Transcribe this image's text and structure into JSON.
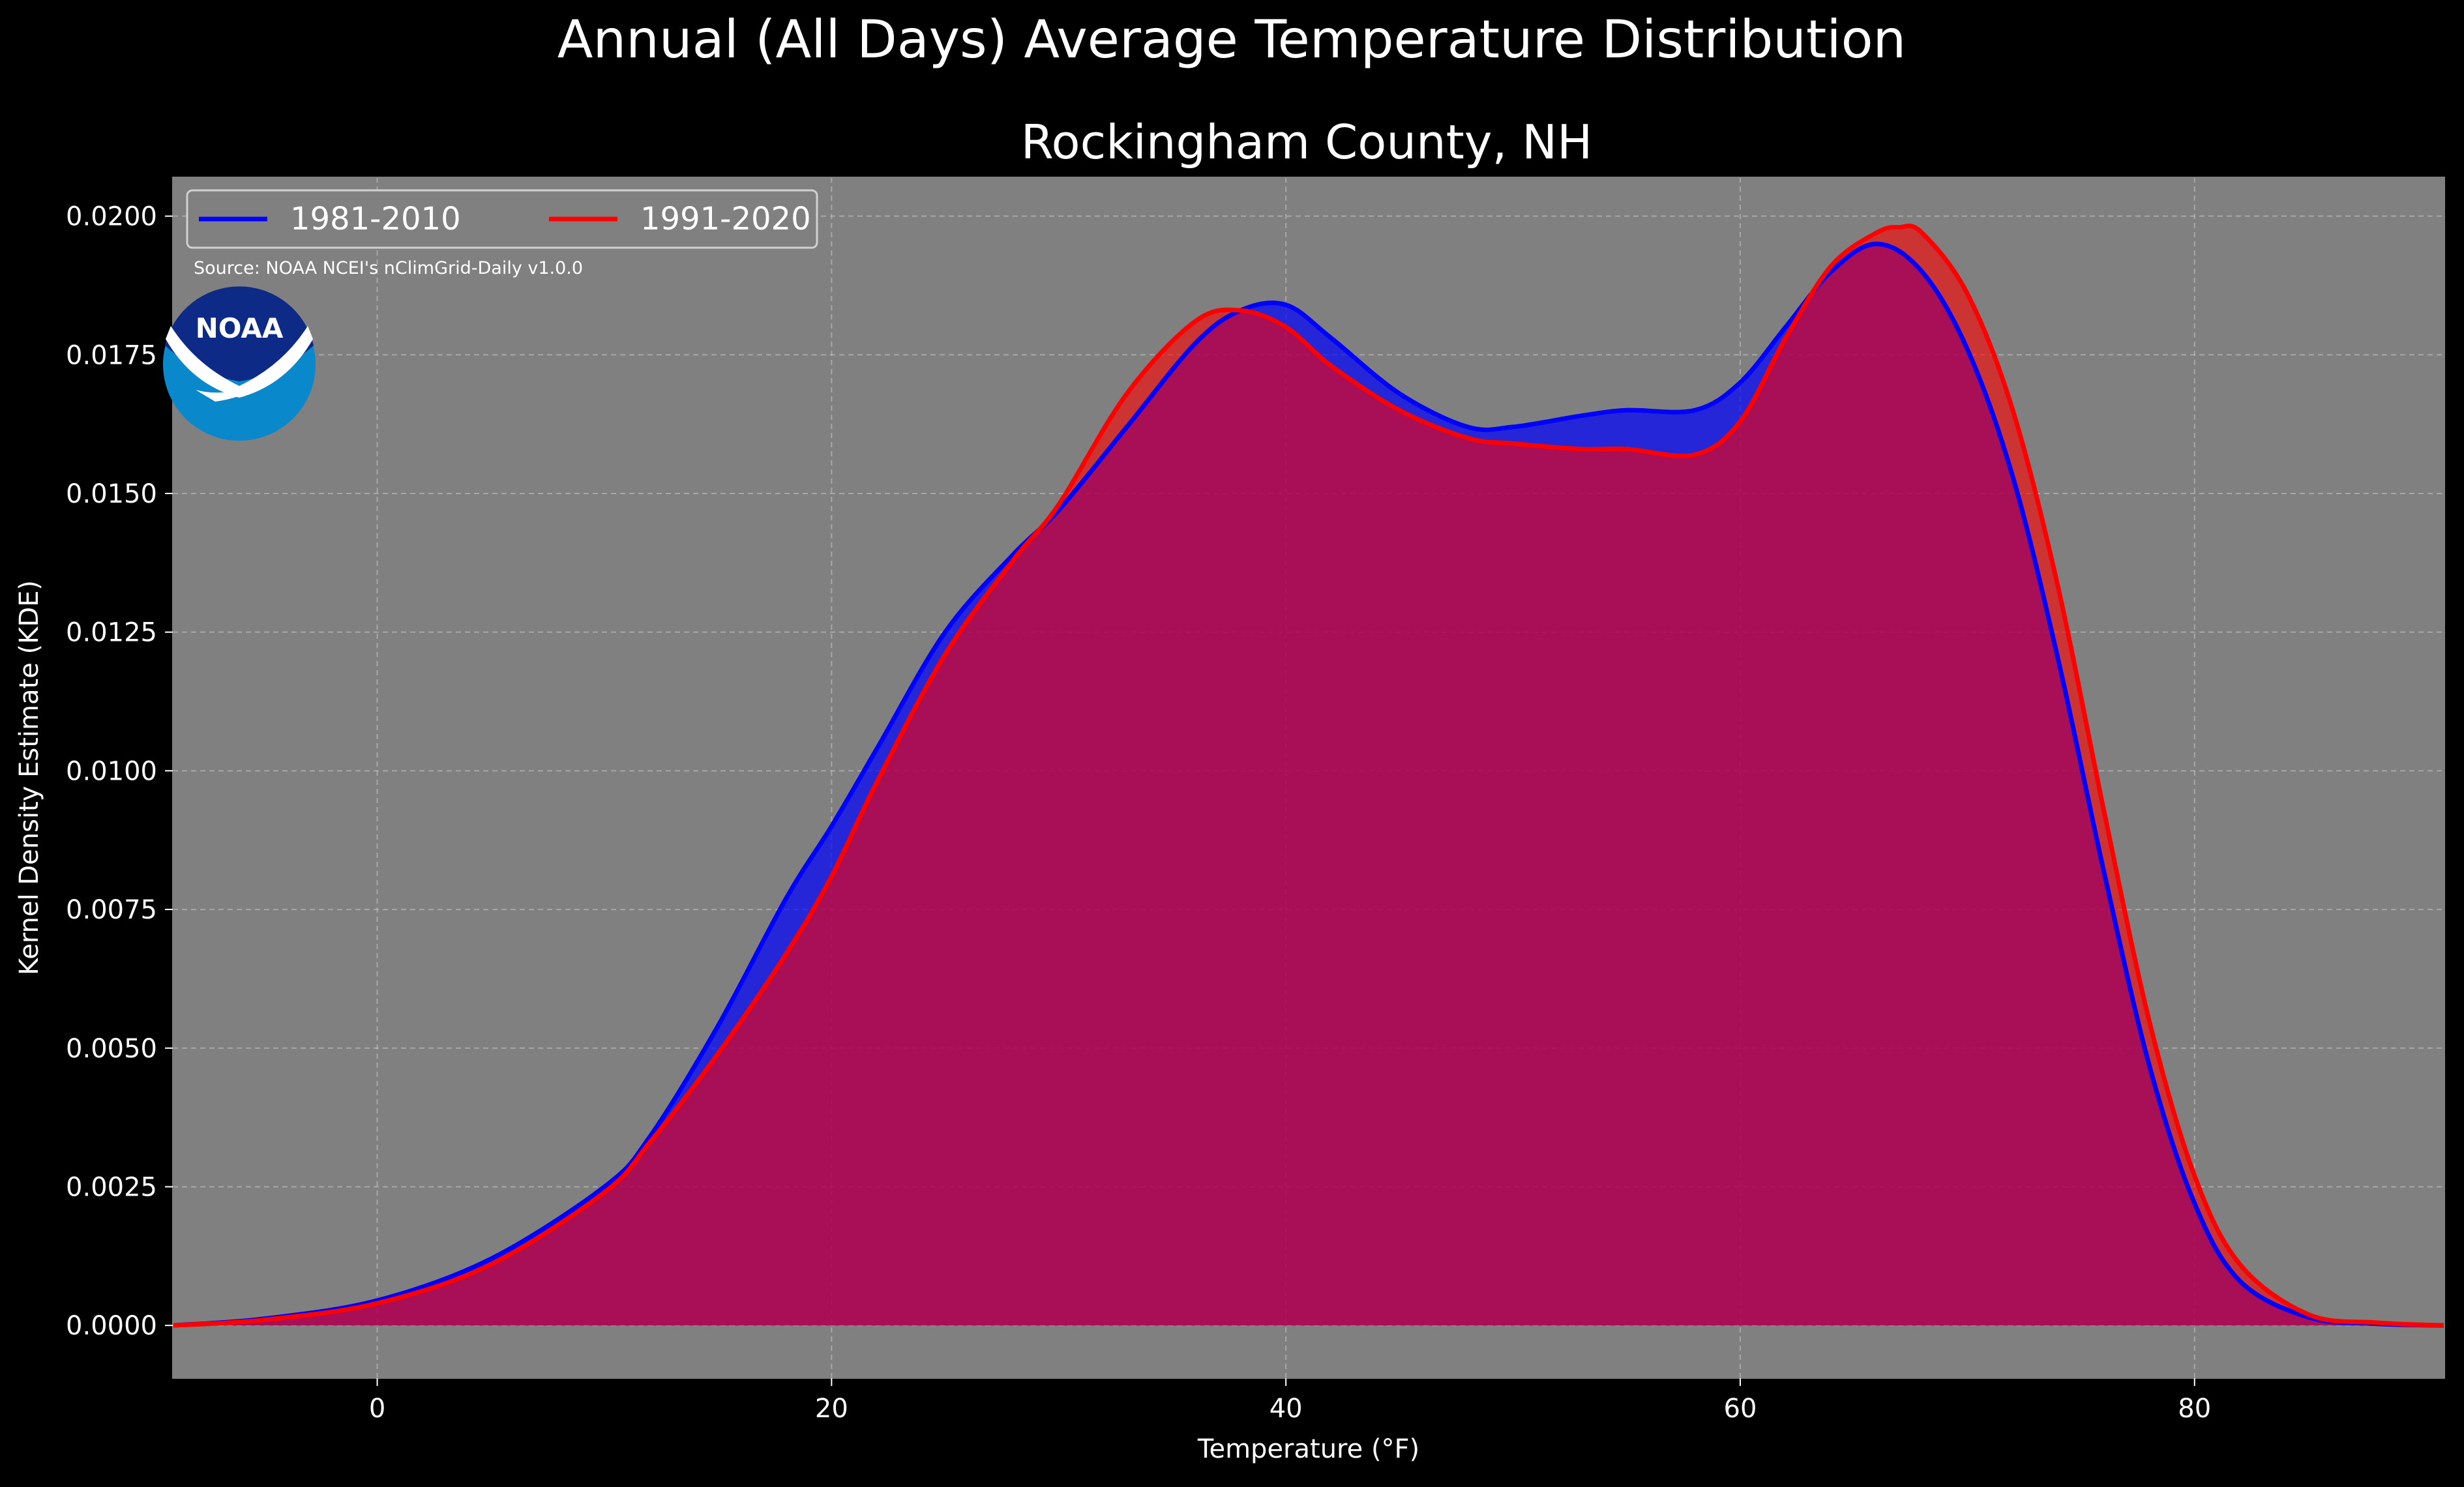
{
  "suptitle": "Annual (All Days) Average Temperature Distribution",
  "title": "Rockingham County, NH",
  "source_note": "Source: NOAA NCEI's nClimGrid-Daily v1.0.0",
  "logo": {
    "icon": "noaa-logo",
    "text": "NOAA"
  },
  "colors": {
    "page_background": "#000000",
    "plot_background": "#808080",
    "series_1981_2010": "#0000ff",
    "series_1991_2020": "#ff0000",
    "text": "#ffffff",
    "grid": "#c8c8c8"
  },
  "chart_data": {
    "type": "area",
    "title": "Rockingham County, NH",
    "xlabel": "Temperature (°F)",
    "ylabel": "Kernel Density Estimate (KDE)",
    "xlim": [
      -9,
      91
    ],
    "ylim": [
      -0.00095,
      0.0207
    ],
    "x_ticks": [
      0,
      20,
      40,
      60,
      80
    ],
    "y_ticks": [
      0,
      0.0025,
      0.005,
      0.0075,
      0.01,
      0.0125,
      0.015,
      0.0175,
      0.02
    ],
    "x_tick_labels": [
      "0",
      "20",
      "40",
      "60",
      "80"
    ],
    "y_tick_labels": [
      "0.0000",
      "0.0025",
      "0.0050",
      "0.0075",
      "0.0100",
      "0.0125",
      "0.0150",
      "0.0175",
      "0.0200"
    ],
    "grid": true,
    "legend_position": "top-left",
    "series": [
      {
        "name": "1981-2010",
        "color": "#0000ff",
        "x": [
          -9,
          -5,
          0,
          5,
          10,
          12,
          15,
          18,
          20,
          22,
          25,
          28,
          30,
          33,
          36,
          38,
          40,
          42,
          45,
          48,
          50,
          53,
          55,
          58,
          60,
          62,
          64,
          66,
          68,
          70,
          72,
          74,
          76,
          78,
          80,
          82,
          85,
          88,
          91
        ],
        "y": [
          0,
          0.00012,
          0.00045,
          0.0012,
          0.0025,
          0.0034,
          0.0054,
          0.0077,
          0.009,
          0.0104,
          0.0125,
          0.0139,
          0.0147,
          0.0162,
          0.0177,
          0.0183,
          0.0184,
          0.0178,
          0.0168,
          0.0162,
          0.0162,
          0.0164,
          0.0165,
          0.0165,
          0.017,
          0.018,
          0.019,
          0.0195,
          0.019,
          0.0176,
          0.0153,
          0.012,
          0.0082,
          0.0047,
          0.0022,
          0.0008,
          0.00015,
          3e-05,
          0
        ]
      },
      {
        "name": "1991-2020",
        "color": "#ff0000",
        "x": [
          -9,
          -5,
          0,
          5,
          10,
          12,
          15,
          18,
          20,
          22,
          25,
          28,
          30,
          33,
          36,
          38,
          40,
          42,
          45,
          48,
          50,
          53,
          55,
          58,
          60,
          62,
          64,
          66,
          67,
          68,
          70,
          72,
          74,
          76,
          78,
          80,
          82,
          85,
          88,
          91
        ],
        "y": [
          0,
          0.0001,
          0.0004,
          0.0011,
          0.0024,
          0.0033,
          0.0049,
          0.0067,
          0.0081,
          0.0098,
          0.0121,
          0.0138,
          0.0148,
          0.0168,
          0.0181,
          0.0183,
          0.018,
          0.0173,
          0.0165,
          0.016,
          0.0159,
          0.0158,
          0.0158,
          0.0157,
          0.0163,
          0.0178,
          0.0191,
          0.0197,
          0.0198,
          0.0197,
          0.0186,
          0.0165,
          0.0133,
          0.0093,
          0.0055,
          0.0027,
          0.0011,
          0.0002,
          5e-05,
          0
        ]
      }
    ]
  }
}
